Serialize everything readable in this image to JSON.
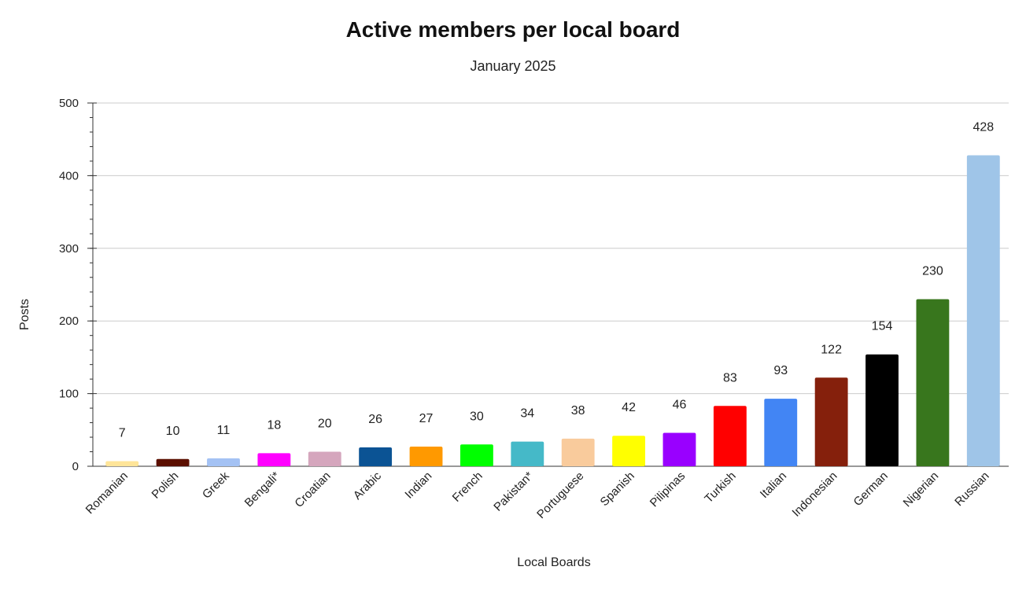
{
  "chart_data": {
    "type": "bar",
    "title": "Active members per local board",
    "subtitle": "January 2025",
    "xlabel": "Local Boards",
    "ylabel": "Posts",
    "ylim": [
      0,
      500
    ],
    "yticks": [
      0,
      100,
      200,
      300,
      400,
      500
    ],
    "grid": true,
    "legend": "none",
    "categories": [
      "Romanian",
      "Polish",
      "Greek",
      "Bengali*",
      "Croatian",
      "Arabic",
      "Indian",
      "French",
      "Pakistan*",
      "Portuguese",
      "Spanish",
      "Pilipinas",
      "Turkish",
      "Italian",
      "Indonesian",
      "German",
      "Nigerian",
      "Russian"
    ],
    "values": [
      7,
      10,
      11,
      18,
      20,
      26,
      27,
      30,
      34,
      38,
      42,
      46,
      83,
      93,
      122,
      154,
      230,
      428
    ],
    "colors": [
      "#ffe599",
      "#5b0f00",
      "#a4c2f4",
      "#ff00ff",
      "#d5a6bd",
      "#0b5394",
      "#ff9900",
      "#00ff00",
      "#45b9c8",
      "#f9cb9c",
      "#ffff00",
      "#9900ff",
      "#ff0000",
      "#4285f4",
      "#85200c",
      "#000000",
      "#38761d",
      "#9fc5e8"
    ]
  }
}
